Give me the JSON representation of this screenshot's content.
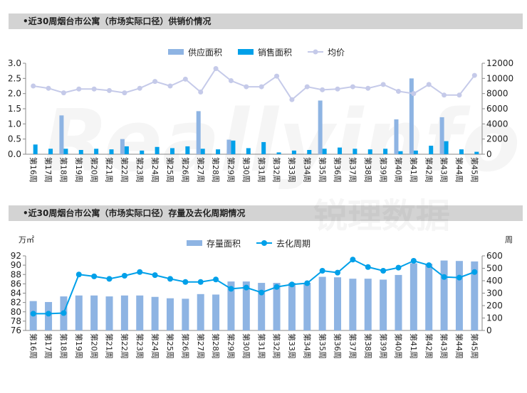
{
  "charts": [
    {
      "title": "•近30周烟台市公寓（市场实际口径）供销价情况",
      "unit_left": "",
      "unit_right": "",
      "legend": [
        "供应面积",
        "销售面积",
        "均价"
      ]
    },
    {
      "title": "•近30周烟台市公寓（市场实际口径）存量及去化周期情况",
      "unit_left": "万㎡",
      "unit_right": "周",
      "legend": [
        "存量面积",
        "去化周期"
      ]
    }
  ],
  "watermark": "Reallyinfo 锐理数据",
  "chart_data": [
    {
      "type": "bar",
      "categories": [
        "第16周",
        "第17周",
        "第18周",
        "第19周",
        "第20周",
        "第21周",
        "第22周",
        "第23周",
        "第24周",
        "第25周",
        "第26周",
        "第27周",
        "第28周",
        "第29周",
        "第30周",
        "第31周",
        "第32周",
        "第33周",
        "第34周",
        "第35周",
        "第36周",
        "第37周",
        "第38周",
        "第39周",
        "第40周",
        "第41周",
        "第42周",
        "第43周",
        "第44周",
        "第45周"
      ],
      "series": [
        {
          "name": "供应面积",
          "kind": "bar",
          "axis": "left",
          "color": "#8eb4e3",
          "values": [
            0,
            0,
            1.28,
            0,
            0,
            0,
            0.5,
            0,
            0,
            0,
            0,
            1.42,
            0,
            0.48,
            0,
            0,
            0,
            0,
            0,
            1.77,
            0,
            0,
            0,
            0,
            1.15,
            2.5,
            0,
            1.22,
            0,
            0
          ]
        },
        {
          "name": "销售面积",
          "kind": "bar",
          "axis": "left",
          "color": "#00a0e9",
          "values": [
            0.32,
            0.18,
            0.18,
            0.14,
            0.18,
            0.16,
            0.26,
            0.12,
            0.24,
            0.2,
            0.26,
            0.18,
            0.16,
            0.45,
            0.2,
            0.4,
            0.06,
            0.12,
            0.14,
            0.18,
            0.22,
            0.18,
            0.16,
            0.18,
            0.1,
            0.12,
            0.28,
            0.43,
            0.16,
            0.08
          ]
        },
        {
          "name": "均价",
          "kind": "line",
          "axis": "right",
          "color": "#c5cae9",
          "values": [
            9000,
            8700,
            8100,
            8600,
            8600,
            8400,
            8100,
            8700,
            9600,
            9000,
            9900,
            8200,
            11300,
            9700,
            8900,
            8900,
            10300,
            7200,
            8900,
            8500,
            8600,
            8900,
            8700,
            9200,
            8300,
            8000,
            9200,
            7800,
            7800,
            10400
          ]
        }
      ],
      "ylim_left": [
        0,
        3.0
      ],
      "yticks_left": [
        "0.0",
        "0.5",
        "1.0",
        "1.5",
        "2.0",
        "2.5",
        "3.0"
      ],
      "ylim_right": [
        0,
        12000
      ],
      "yticks_right": [
        "0",
        "2000",
        "4000",
        "6000",
        "8000",
        "10000",
        "12000"
      ],
      "legend_position": "top-center",
      "grid": false
    },
    {
      "type": "bar",
      "categories": [
        "第16周",
        "第17周",
        "第18周",
        "第19周",
        "第20周",
        "第21周",
        "第22周",
        "第23周",
        "第24周",
        "第25周",
        "第26周",
        "第27周",
        "第28周",
        "第29周",
        "第30周",
        "第31周",
        "第32周",
        "第33周",
        "第34周",
        "第35周",
        "第36周",
        "第37周",
        "第38周",
        "第39周",
        "第40周",
        "第41周",
        "第42周",
        "第43周",
        "第44周",
        "第45周"
      ],
      "series": [
        {
          "name": "存量面积",
          "kind": "bar",
          "axis": "left",
          "color": "#8eb4e3",
          "values": [
            82.3,
            82.1,
            83.3,
            83.5,
            83.5,
            83.3,
            83.5,
            83.5,
            83.2,
            82.9,
            82.8,
            83.8,
            83.7,
            86.5,
            86.5,
            86.2,
            86.2,
            86.2,
            86.2,
            87.5,
            87.4,
            87.1,
            87.1,
            86.9,
            87.9,
            90.4,
            90.3,
            91,
            90.9,
            90.8
          ]
        },
        {
          "name": "去化周期",
          "kind": "line",
          "axis": "right",
          "color": "#00a0e9",
          "values": [
            135,
            135,
            140,
            450,
            435,
            415,
            440,
            470,
            445,
            415,
            390,
            390,
            410,
            335,
            345,
            305,
            350,
            370,
            380,
            480,
            465,
            570,
            510,
            480,
            505,
            560,
            525,
            430,
            425,
            470
          ]
        }
      ],
      "ylim_left": [
        76,
        92
      ],
      "yticks_left": [
        "76",
        "78",
        "80",
        "82",
        "84",
        "86",
        "88",
        "90",
        "92"
      ],
      "ylim_right": [
        0,
        600
      ],
      "yticks_right": [
        "0",
        "100",
        "200",
        "300",
        "400",
        "500",
        "600"
      ],
      "legend_position": "top-center",
      "grid": false
    }
  ]
}
